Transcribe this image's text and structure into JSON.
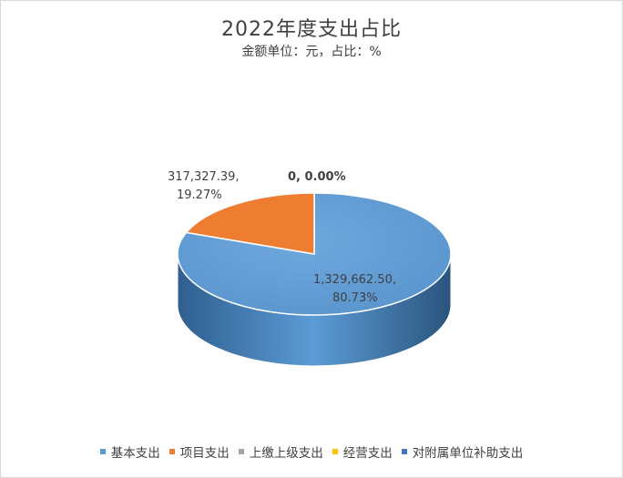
{
  "chart_data": {
    "type": "pie",
    "title": "2022年度支出占比",
    "subtitle": "金额单位：元，占比：%",
    "slices": [
      {
        "name": "基本支出",
        "value": 1329662.5,
        "value_label": "1,329,662.50,",
        "percent_label": "80.73%",
        "color": "#5b9bd5"
      },
      {
        "name": "项目支出",
        "value": 317327.39,
        "value_label": "317,327.39,",
        "percent_label": "19.27%",
        "color": "#ed7d31"
      },
      {
        "name": "上缴上级支出",
        "value": 0,
        "value_label": "0, 0.00%",
        "percent_label": "",
        "color": "#a5a5a5"
      },
      {
        "name": "经营支出",
        "value": 0,
        "value_label": "",
        "percent_label": "",
        "color": "#ffc000"
      },
      {
        "name": "对附属单位补助支出",
        "value": 0,
        "value_label": "",
        "percent_label": "",
        "color": "#4472c4"
      }
    ],
    "legend_position": "bottom",
    "style": "3d"
  }
}
